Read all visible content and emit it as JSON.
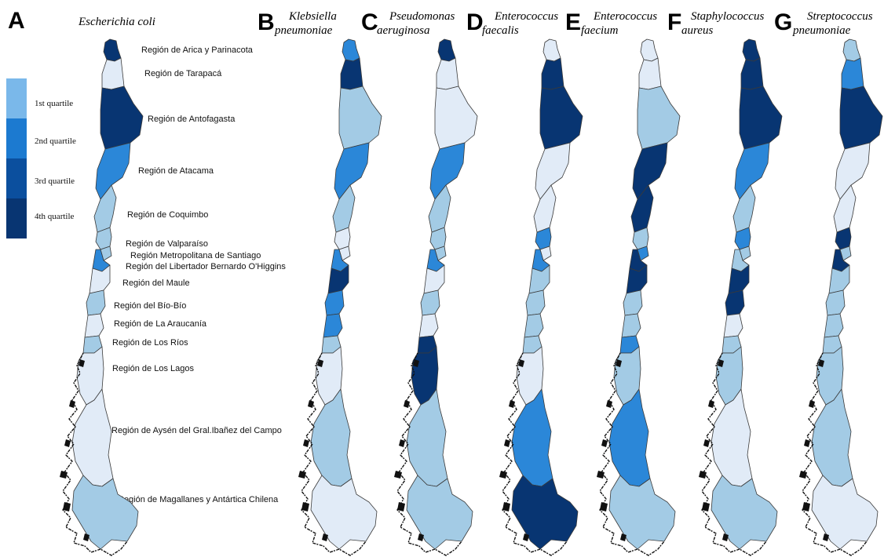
{
  "legend": {
    "items": [
      {
        "label": "1st quartile",
        "color": "#7ab8ea"
      },
      {
        "label": "2nd quartile",
        "color": "#1c7ad0"
      },
      {
        "label": "3rd quartile",
        "color": "#0b4f9e"
      },
      {
        "label": "4th quartile",
        "color": "#083572"
      }
    ]
  },
  "palette": {
    "q0": "#e1ebf7",
    "q1": "#a3cbe5",
    "q2": "#2b87d8",
    "q3": "#0b4f9e",
    "q4": "#083572",
    "coast": "#111111"
  },
  "regions": [
    "Región de Arica y Parinacota",
    "Región de Tarapacá",
    "Región de Antofagasta",
    "Región de Atacama",
    "Región de Coquimbo",
    "Región de Valparaíso",
    "Región Metropolitana de Santiago",
    "Región del Libertador Bernardo O'Higgins",
    "Región del Maule",
    "Región del Bío-Bío",
    "Región de La Araucanía",
    "Región de Los Ríos",
    "Región de Los Lagos",
    "Región de Aysén del Gral.Ibañez del Campo",
    "Región de Magallanes y Antártica Chilena"
  ],
  "panels": [
    {
      "letter": "A",
      "species": [
        "Escherichia coli"
      ],
      "classes": [
        "q4",
        "q0",
        "q4",
        "q2",
        "q1",
        "q1",
        "q1",
        "q2",
        "q0",
        "q1",
        "q0",
        "q1",
        "q0",
        "q0",
        "q1"
      ]
    },
    {
      "letter": "B",
      "species": [
        "Klebsiella",
        "pneumoniae"
      ],
      "classes": [
        "q2",
        "q4",
        "q1",
        "q2",
        "q1",
        "q0",
        "q0",
        "q2",
        "q4",
        "q2",
        "q2",
        "q1",
        "q0",
        "q1",
        "q0"
      ]
    },
    {
      "letter": "C",
      "species": [
        "Pseudomonas",
        "aeruginosa"
      ],
      "classes": [
        "q4",
        "q0",
        "q0",
        "q2",
        "q1",
        "q1",
        "q1",
        "q2",
        "q0",
        "q1",
        "q0",
        "q4",
        "q4",
        "q1",
        "q1"
      ]
    },
    {
      "letter": "D",
      "species": [
        "Enterococcus",
        "faecalis"
      ],
      "classes": [
        "q0",
        "q4",
        "q4",
        "q0",
        "q0",
        "q2",
        "q0",
        "q2",
        "q1",
        "q1",
        "q1",
        "q1",
        "q0",
        "q2",
        "q4"
      ]
    },
    {
      "letter": "E",
      "species": [
        "Enterococcus",
        "faecium"
      ],
      "classes": [
        "q0",
        "q0",
        "q1",
        "q4",
        "q4",
        "q1",
        "q2",
        "q4",
        "q4",
        "q1",
        "q1",
        "q2",
        "q1",
        "q2",
        "q1"
      ]
    },
    {
      "letter": "F",
      "species": [
        "Staphylococcus",
        "aureus"
      ],
      "classes": [
        "q4",
        "q4",
        "q4",
        "q2",
        "q1",
        "q2",
        "q1",
        "q1",
        "q4",
        "q4",
        "q0",
        "q1",
        "q1",
        "q0",
        "q1"
      ]
    },
    {
      "letter": "G",
      "species": [
        "Streptococcus",
        "pneumoniae"
      ],
      "classes": [
        "q1",
        "q2",
        "q4",
        "q0",
        "q0",
        "q4",
        "q1",
        "q4",
        "q1",
        "q1",
        "q1",
        "q1",
        "q1",
        "q1",
        "q0"
      ]
    }
  ]
}
